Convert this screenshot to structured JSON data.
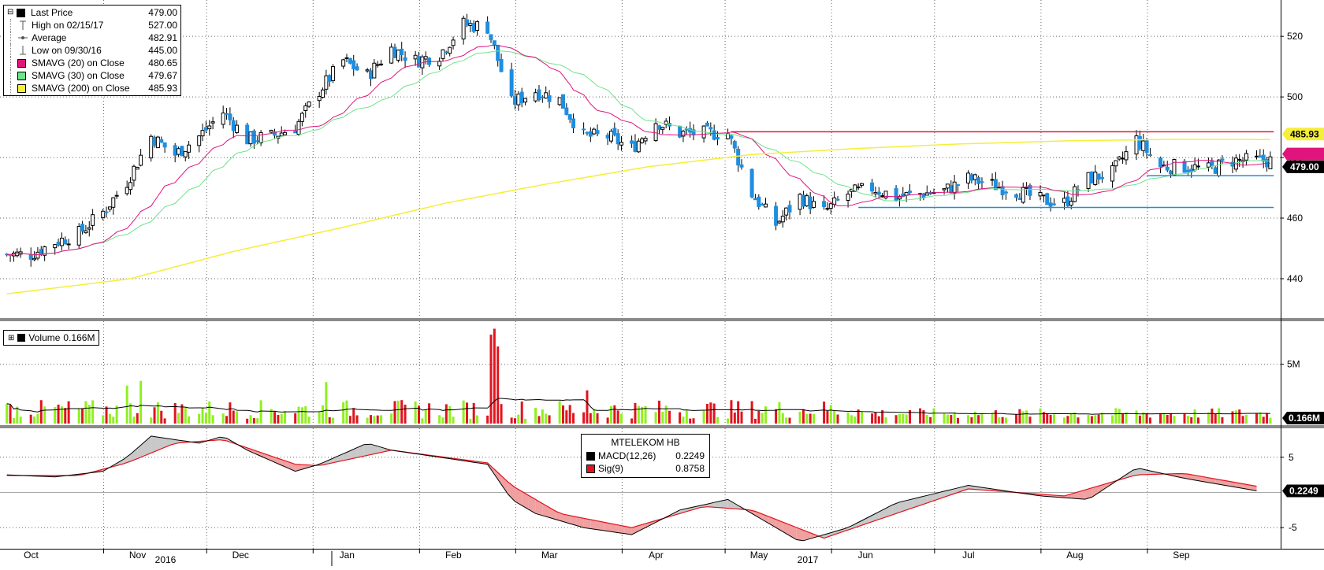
{
  "chart_data": {
    "type": "candlestick",
    "title": "",
    "security": "MTELEKOM HB",
    "x_month_labels": [
      "Oct",
      "Nov",
      "Dec",
      "Jan",
      "Feb",
      "Mar",
      "Apr",
      "May",
      "Jun",
      "Jul",
      "Aug",
      "Sep"
    ],
    "x_year_labels": [
      "2016",
      "2017"
    ],
    "price_panel": {
      "yticks": [
        440,
        460,
        480,
        500,
        520
      ],
      "ylim": [
        427,
        532
      ],
      "legend": [
        {
          "label": "Last Price",
          "value": "479.00",
          "symbol": "square",
          "color": "#000000"
        },
        {
          "label": "High on 02/15/17",
          "value": "527.00",
          "symbol": "high",
          "color": "#555555"
        },
        {
          "label": "Average",
          "value": "482.91",
          "symbol": "avg",
          "color": "#555555"
        },
        {
          "label": "Low on 09/30/16",
          "value": "445.00",
          "symbol": "low",
          "color": "#555555"
        },
        {
          "label": "SMAVG (20) on Close",
          "value": "480.65",
          "symbol": "square",
          "color": "#e0147c"
        },
        {
          "label": "SMAVG (30) on Close",
          "value": "479.67",
          "symbol": "square",
          "color": "#6fe38a"
        },
        {
          "label": "SMAVG (200) on Close",
          "value": "485.93",
          "symbol": "square",
          "color": "#f5ee3a"
        }
      ],
      "price_tags": [
        {
          "value": 485.93,
          "text": "485.93",
          "bg": "#f5ee3a",
          "fg": "#000000"
        },
        {
          "value": 480.65,
          "text": "",
          "bg": "#e0147c",
          "fg": "#ffffff"
        },
        {
          "value": 479.0,
          "text": "479.00",
          "bg": "#000000",
          "fg": "#ffffff"
        }
      ],
      "hlines": [
        {
          "y": 488.5,
          "color": "#e0143c",
          "x_from": "2017-04-25",
          "x_to": "2017-09-30"
        },
        {
          "y": 474,
          "color": "#1e8fe0",
          "x_from": "2017-08-24",
          "x_to": "2017-09-30"
        },
        {
          "y": 463.5,
          "color": "#1e8fe0",
          "x_from": "2017-06-01",
          "x_to": "2017-09-30"
        }
      ],
      "sma200_points": [
        {
          "x": "2016-09-26",
          "y": 435
        },
        {
          "x": "2016-11-01",
          "y": 440
        },
        {
          "x": "2016-12-01",
          "y": 449
        },
        {
          "x": "2017-01-02",
          "y": 457
        },
        {
          "x": "2017-02-01",
          "y": 465
        },
        {
          "x": "2017-03-01",
          "y": 471
        },
        {
          "x": "2017-04-01",
          "y": 477
        },
        {
          "x": "2017-05-01",
          "y": 481
        },
        {
          "x": "2017-06-01",
          "y": 483
        },
        {
          "x": "2017-07-01",
          "y": 484.5
        },
        {
          "x": "2017-08-01",
          "y": 485.5
        },
        {
          "x": "2017-09-01",
          "y": 486
        },
        {
          "x": "2017-09-29",
          "y": 485.93
        }
      ],
      "close_points": [
        {
          "x": "2016-09-26",
          "y": 448
        },
        {
          "x": "2016-10-03",
          "y": 448
        },
        {
          "x": "2016-10-10",
          "y": 452
        },
        {
          "x": "2016-10-17",
          "y": 455
        },
        {
          "x": "2016-10-24",
          "y": 462
        },
        {
          "x": "2016-10-31",
          "y": 472
        },
        {
          "x": "2016-11-07",
          "y": 487
        },
        {
          "x": "2016-11-14",
          "y": 481
        },
        {
          "x": "2016-11-21",
          "y": 487
        },
        {
          "x": "2016-11-28",
          "y": 495
        },
        {
          "x": "2016-12-05",
          "y": 486
        },
        {
          "x": "2016-12-12",
          "y": 487
        },
        {
          "x": "2016-12-19",
          "y": 490
        },
        {
          "x": "2016-12-26",
          "y": 502
        },
        {
          "x": "2017-01-02",
          "y": 512
        },
        {
          "x": "2017-01-09",
          "y": 507
        },
        {
          "x": "2017-01-16",
          "y": 516
        },
        {
          "x": "2017-01-23",
          "y": 512
        },
        {
          "x": "2017-01-30",
          "y": 514
        },
        {
          "x": "2017-02-06",
          "y": 524
        },
        {
          "x": "2017-02-13",
          "y": 523
        },
        {
          "x": "2017-02-20",
          "y": 498
        },
        {
          "x": "2017-02-27",
          "y": 502
        },
        {
          "x": "2017-03-06",
          "y": 499
        },
        {
          "x": "2017-03-13",
          "y": 487
        },
        {
          "x": "2017-03-20",
          "y": 487
        },
        {
          "x": "2017-03-27",
          "y": 483
        },
        {
          "x": "2017-04-03",
          "y": 492
        },
        {
          "x": "2017-04-10",
          "y": 488
        },
        {
          "x": "2017-04-17",
          "y": 488
        },
        {
          "x": "2017-04-24",
          "y": 488
        },
        {
          "x": "2017-05-01",
          "y": 468
        },
        {
          "x": "2017-05-08",
          "y": 458
        },
        {
          "x": "2017-05-15",
          "y": 467
        },
        {
          "x": "2017-05-22",
          "y": 462
        },
        {
          "x": "2017-05-29",
          "y": 468
        },
        {
          "x": "2017-06-05",
          "y": 470
        },
        {
          "x": "2017-06-12",
          "y": 467
        },
        {
          "x": "2017-06-19",
          "y": 468
        },
        {
          "x": "2017-06-26",
          "y": 469
        },
        {
          "x": "2017-07-03",
          "y": 473
        },
        {
          "x": "2017-07-10",
          "y": 471
        },
        {
          "x": "2017-07-17",
          "y": 469
        },
        {
          "x": "2017-07-24",
          "y": 466
        },
        {
          "x": "2017-07-31",
          "y": 465
        },
        {
          "x": "2017-08-07",
          "y": 473
        },
        {
          "x": "2017-08-14",
          "y": 475
        },
        {
          "x": "2017-08-21",
          "y": 486
        },
        {
          "x": "2017-08-28",
          "y": 477
        },
        {
          "x": "2017-09-04",
          "y": 477
        },
        {
          "x": "2017-09-11",
          "y": 476
        },
        {
          "x": "2017-09-18",
          "y": 479
        }
      ]
    },
    "volume_panel": {
      "label": "Volume",
      "value": "0.166M",
      "yticks": [
        {
          "value": 5,
          "label": "5M"
        }
      ],
      "ylim": [
        0,
        8.5
      ],
      "last_tag": "0.166M"
    },
    "macd_panel": {
      "yticks": [
        -5,
        5
      ],
      "ylim": [
        -8,
        9
      ],
      "last_tag": "0.2249",
      "legend_title": "MTELEKOM HB",
      "legend": [
        {
          "label": "MACD(12,26)",
          "value": "0.2249",
          "color": "#000000"
        },
        {
          "label": "Sig(9)",
          "value": "0.8758",
          "color": "#e0141e"
        }
      ],
      "macd_points": [
        {
          "x": "2016-09-26",
          "y": 2.5
        },
        {
          "x": "2016-10-10",
          "y": 2.2
        },
        {
          "x": "2016-10-24",
          "y": 3
        },
        {
          "x": "2016-10-31",
          "y": 5
        },
        {
          "x": "2016-11-07",
          "y": 8
        },
        {
          "x": "2016-11-21",
          "y": 7
        },
        {
          "x": "2016-11-28",
          "y": 8
        },
        {
          "x": "2016-12-05",
          "y": 6
        },
        {
          "x": "2016-12-19",
          "y": 3
        },
        {
          "x": "2016-12-26",
          "y": 4
        },
        {
          "x": "2017-01-09",
          "y": 7
        },
        {
          "x": "2017-01-16",
          "y": 6
        },
        {
          "x": "2017-01-30",
          "y": 5
        },
        {
          "x": "2017-02-13",
          "y": 4
        },
        {
          "x": "2017-02-20",
          "y": -1
        },
        {
          "x": "2017-02-27",
          "y": -3
        },
        {
          "x": "2017-03-13",
          "y": -5
        },
        {
          "x": "2017-03-27",
          "y": -6
        },
        {
          "x": "2017-04-10",
          "y": -2.5
        },
        {
          "x": "2017-04-24",
          "y": -1
        },
        {
          "x": "2017-05-01",
          "y": -3
        },
        {
          "x": "2017-05-15",
          "y": -7
        },
        {
          "x": "2017-05-29",
          "y": -5
        },
        {
          "x": "2017-06-12",
          "y": -1.5
        },
        {
          "x": "2017-07-03",
          "y": 1
        },
        {
          "x": "2017-07-24",
          "y": -0.5
        },
        {
          "x": "2017-08-07",
          "y": -1
        },
        {
          "x": "2017-08-21",
          "y": 3.5
        },
        {
          "x": "2017-09-04",
          "y": 2
        },
        {
          "x": "2017-09-25",
          "y": 0.2249
        }
      ],
      "signal_points": [
        {
          "x": "2016-09-26",
          "y": 2.4
        },
        {
          "x": "2016-10-17",
          "y": 2.4
        },
        {
          "x": "2016-10-31",
          "y": 4.2
        },
        {
          "x": "2016-11-14",
          "y": 7
        },
        {
          "x": "2016-11-28",
          "y": 7.5
        },
        {
          "x": "2016-12-19",
          "y": 4
        },
        {
          "x": "2016-12-26",
          "y": 3.8
        },
        {
          "x": "2017-01-16",
          "y": 6
        },
        {
          "x": "2017-02-13",
          "y": 4.2
        },
        {
          "x": "2017-02-20",
          "y": 1
        },
        {
          "x": "2017-03-06",
          "y": -3
        },
        {
          "x": "2017-03-27",
          "y": -5
        },
        {
          "x": "2017-04-17",
          "y": -2
        },
        {
          "x": "2017-05-01",
          "y": -2.5
        },
        {
          "x": "2017-05-22",
          "y": -6.5
        },
        {
          "x": "2017-06-12",
          "y": -3
        },
        {
          "x": "2017-07-03",
          "y": 0.5
        },
        {
          "x": "2017-07-31",
          "y": -0.5
        },
        {
          "x": "2017-08-21",
          "y": 2.5
        },
        {
          "x": "2017-09-04",
          "y": 2.7
        },
        {
          "x": "2017-09-25",
          "y": 0.8758
        }
      ]
    }
  }
}
